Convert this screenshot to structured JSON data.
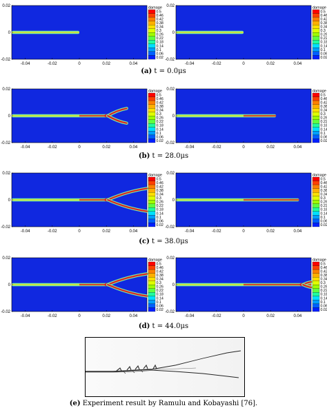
{
  "chart_data": [
    {
      "type": "heatmap",
      "caption_label": "(a)",
      "caption_text": "t = 0.0μs",
      "xticks": [
        "-0.04",
        "-0.02",
        "0",
        "0.02",
        "0.04"
      ],
      "yticks": [
        "0.02",
        "0",
        "-0.02"
      ],
      "xlim": [
        -0.05,
        0.05
      ],
      "ylim": [
        -0.02,
        0.02
      ],
      "colorbar_title": "damage",
      "colorbar_levels": [
        "0.5",
        "0.46",
        "0.42",
        "0.38",
        "0.34",
        "0.3",
        "0.26",
        "0.22",
        "0.18",
        "0.14",
        "0.1",
        "0.06",
        "0.02"
      ],
      "left_crack": {
        "main_tip": 0.0,
        "branch_start": null,
        "branches": []
      },
      "right_crack": {
        "main_tip": 0.0,
        "branch_start": null,
        "branches": []
      }
    },
    {
      "type": "heatmap",
      "caption_label": "(b)",
      "caption_text": "t = 28.0μs",
      "xticks": [
        "-0.04",
        "-0.02",
        "0",
        "0.02",
        "0.04"
      ],
      "yticks": [
        "0.02",
        "0",
        "-0.02"
      ],
      "xlim": [
        -0.05,
        0.05
      ],
      "ylim": [
        -0.02,
        0.02
      ],
      "colorbar_title": "damage",
      "colorbar_levels": [
        "0.5",
        "0.46",
        "0.42",
        "0.38",
        "0.34",
        "0.3",
        "0.26",
        "0.22",
        "0.18",
        "0.14",
        "0.1",
        "0.06",
        "0.02"
      ],
      "left_crack": {
        "main_tip": 0.021,
        "branch_start": 0.021,
        "branches": [
          {
            "tip_x": 0.035,
            "tip_y": 0.0055
          },
          {
            "tip_x": 0.035,
            "tip_y": -0.0055
          }
        ]
      },
      "right_crack": {
        "main_tip": 0.024,
        "branch_start": null,
        "branches": []
      }
    },
    {
      "type": "heatmap",
      "caption_label": "(c)",
      "caption_text": "t = 38.0μs",
      "xticks": [
        "-0.04",
        "-0.02",
        "0",
        "0.02",
        "0.04"
      ],
      "yticks": [
        "0.02",
        "0",
        "-0.02"
      ],
      "xlim": [
        -0.05,
        0.05
      ],
      "ylim": [
        -0.02,
        0.02
      ],
      "colorbar_title": "damage",
      "colorbar_levels": [
        "0.5",
        "0.46",
        "0.42",
        "0.38",
        "0.34",
        "0.3",
        "0.26",
        "0.22",
        "0.18",
        "0.14",
        "0.1",
        "0.06",
        "0.02"
      ],
      "left_crack": {
        "main_tip": 0.021,
        "branch_start": 0.021,
        "branches": [
          {
            "tip_x": 0.05,
            "tip_y": 0.0085
          },
          {
            "tip_x": 0.05,
            "tip_y": -0.0085
          }
        ]
      },
      "right_crack": {
        "main_tip": 0.041,
        "branch_start": null,
        "branches": []
      }
    },
    {
      "type": "heatmap",
      "caption_label": "(d)",
      "caption_text": "t = 44.0μs",
      "xticks": [
        "-0.04",
        "-0.02",
        "0",
        "0.02",
        "0.04"
      ],
      "yticks": [
        "0.02",
        "0",
        "-0.02"
      ],
      "xlim": [
        -0.05,
        0.05
      ],
      "ylim": [
        -0.02,
        0.02
      ],
      "colorbar_title": "damage",
      "colorbar_levels": [
        "0.5",
        "0.46",
        "0.42",
        "0.38",
        "0.34",
        "0.3",
        "0.26",
        "0.22",
        "0.18",
        "0.14",
        "0.1",
        "0.06",
        "0.02"
      ],
      "left_crack": {
        "main_tip": 0.021,
        "branch_start": 0.021,
        "branches": [
          {
            "tip_x": 0.05,
            "tip_y": 0.008
          },
          {
            "tip_x": 0.05,
            "tip_y": -0.0085
          }
        ]
      },
      "right_crack": {
        "main_tip": 0.05,
        "branch_start": 0.044,
        "branches": [
          {
            "tip_x": 0.05,
            "tip_y": 0.002
          },
          {
            "tip_x": 0.05,
            "tip_y": -0.002
          }
        ]
      }
    }
  ],
  "experiment": {
    "caption_label": "(e)",
    "caption_text": "Experiment result by Ramulu and Kobayashi [76]."
  },
  "colors": {
    "background": "#1028e0",
    "crack_edge": "#7cf0a0",
    "crack_core": "#c8e040",
    "crack_branch": "#e02020"
  },
  "colorbar_colors": [
    "#ff0000",
    "#ff4000",
    "#ff8000",
    "#ffb000",
    "#ffe000",
    "#e0ff00",
    "#a0ff00",
    "#60ff40",
    "#20ffa0",
    "#00e0ff",
    "#00a0ff",
    "#0060ff",
    "#0020ff"
  ]
}
